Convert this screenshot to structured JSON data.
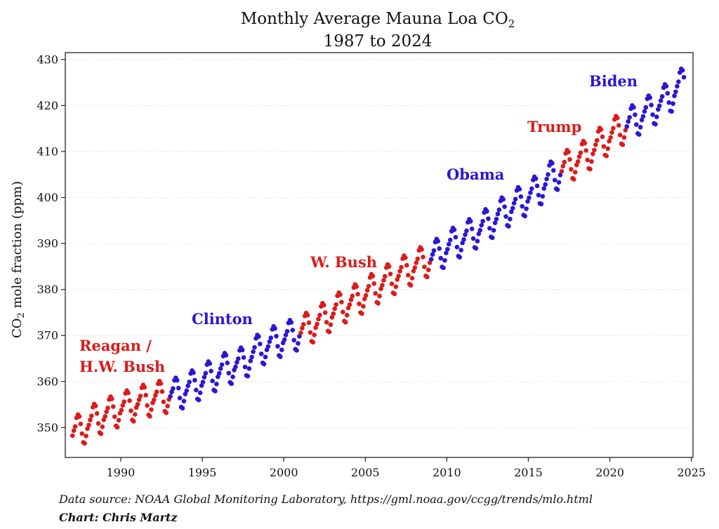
{
  "chart_data": {
    "type": "scatter",
    "title_line1": "Monthly Average Mauna Loa CO",
    "title_sub": "2",
    "title_line2": "1987 to 2024",
    "ylabel_prefix": "CO",
    "ylabel_sub": "2",
    "ylabel_suffix": " mole fraction (ppm)",
    "xlabel": "",
    "xlim": [
      1986.6,
      2025.1
    ],
    "ylim": [
      343.5,
      431.5
    ],
    "x_ticks": [
      1990,
      1995,
      2000,
      2005,
      2010,
      2015,
      2020,
      2025
    ],
    "y_ticks": [
      350,
      360,
      370,
      380,
      390,
      400,
      410,
      420,
      430
    ],
    "grid": "horizontal dotted",
    "series": [
      {
        "name": "Reagan / H.W. Bush",
        "color": "#dd1a1a",
        "x_start": 1987.0,
        "x_end": 1993.0
      },
      {
        "name": "Clinton",
        "color": "#2a16d6",
        "x_start": 1993.0,
        "x_end": 2001.0
      },
      {
        "name": "W. Bush",
        "color": "#dd1a1a",
        "x_start": 2001.0,
        "x_end": 2009.0
      },
      {
        "name": "Obama",
        "color": "#2a16d6",
        "x_start": 2009.0,
        "x_end": 2017.0
      },
      {
        "name": "Trump",
        "color": "#dd1a1a",
        "x_start": 2017.0,
        "x_end": 2021.0
      },
      {
        "name": "Biden",
        "color": "#2a16d6",
        "x_start": 2021.0,
        "x_end": 2024.5
      }
    ],
    "labels": {
      "reagan_line1": "Reagan /",
      "reagan_line2": "H.W. Bush",
      "clinton": "Clinton",
      "wbush": "W. Bush",
      "obama": "Obama",
      "trump": "Trump",
      "biden": "Biden"
    },
    "annual_mean_ppm": {
      "years": [
        1987,
        1988,
        1989,
        1990,
        1991,
        1992,
        1993,
        1994,
        1995,
        1996,
        1997,
        1998,
        1999,
        2000,
        2001,
        2002,
        2003,
        2004,
        2005,
        2006,
        2007,
        2008,
        2009,
        2010,
        2011,
        2012,
        2013,
        2014,
        2015,
        2016,
        2017,
        2018,
        2019,
        2020,
        2021,
        2022,
        2023,
        2024
      ],
      "values": [
        349.3,
        351.6,
        353.1,
        354.4,
        355.6,
        356.4,
        357.1,
        358.8,
        360.8,
        362.6,
        363.7,
        366.7,
        368.4,
        369.7,
        371.3,
        373.5,
        375.8,
        377.5,
        379.8,
        381.9,
        383.8,
        385.6,
        387.4,
        389.9,
        391.7,
        393.9,
        396.5,
        398.7,
        401.0,
        404.4,
        406.8,
        408.7,
        411.7,
        414.2,
        416.5,
        418.6,
        421.1,
        424.6
      ]
    },
    "seasonal_offset_ppm": [
      0.0,
      0.9,
      1.6,
      3.3,
      3.8,
      3.2,
      1.4,
      -0.9,
      -3.0,
      -3.4,
      -2.0,
      -0.6
    ]
  },
  "footer": {
    "source": "Data source: NOAA Global Monitoring Laboratory, https://gml.noaa.gov/ccgg/trends/mlo.html",
    "credit": "Chart: Chris Martz"
  },
  "colors": {
    "red": "#dd1a1a",
    "blue": "#2a16d6"
  }
}
